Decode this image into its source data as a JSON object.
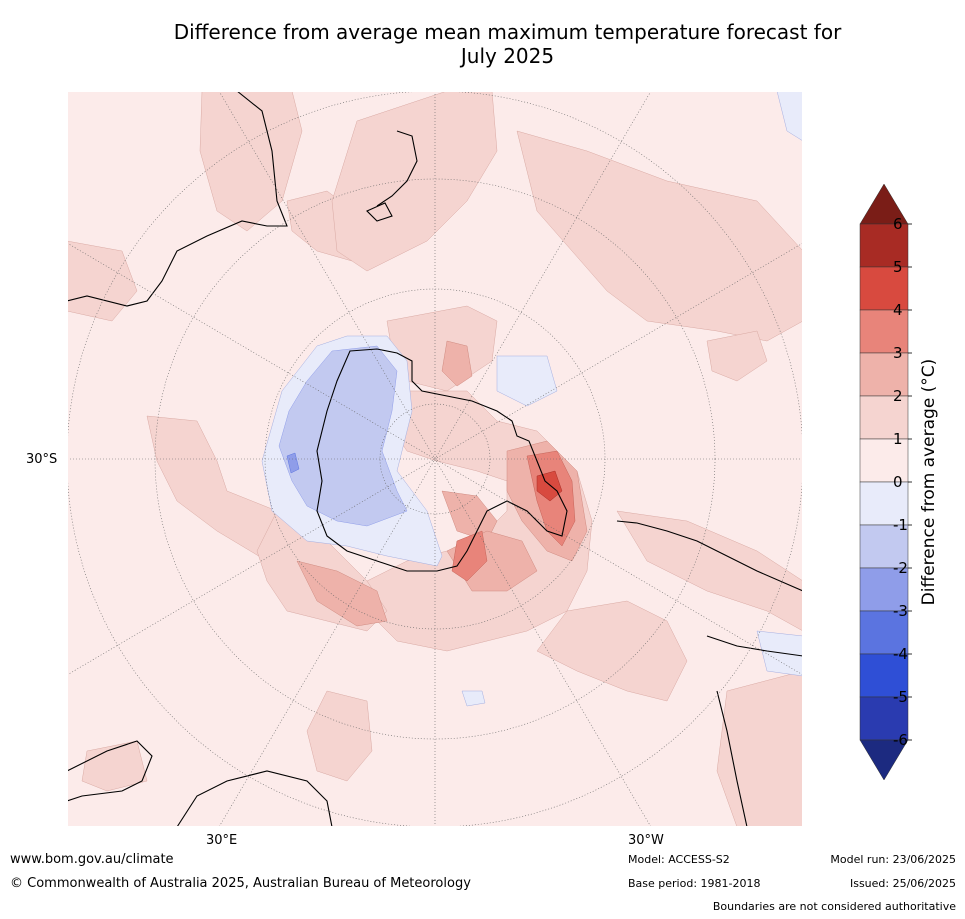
{
  "title": {
    "line1": "Difference from average mean maximum temperature forecast for",
    "line2": "July 2025"
  },
  "map": {
    "projection": "south-polar stereographic",
    "lat_label": "30°S",
    "lon_labels": [
      "30°E",
      "30°W"
    ],
    "ocean_color": "#fcebea"
  },
  "colorbar": {
    "label": "Difference from average (°C)",
    "ticks": [
      "6",
      "5",
      "4",
      "3",
      "2",
      "1",
      "0",
      "-1",
      "-2",
      "-3",
      "-4",
      "-5",
      "-6"
    ],
    "colors": {
      "above_max": "#7a1d17",
      "5_to_6": "#a82b24",
      "4_to_5": "#d84a3f",
      "3_to_4": "#e8847a",
      "2_to_3": "#eeb2aa",
      "1_to_2": "#f5d4d0",
      "0_to_1": "#fcebea",
      "m1_to_0": "#e8ebfa",
      "m2_to_m1": "#c2c9f0",
      "m3_to_m2": "#8f9de9",
      "m4_to_m3": "#5b74e0",
      "m5_to_m4": "#2f4fd6",
      "m6_to_m5": "#2a3bb0",
      "below_min": "#1c2a80"
    }
  },
  "footer": {
    "website": "www.bom.gov.au/climate",
    "copyright": "© Commonwealth of Australia 2025, Australian Bureau of Meteorology",
    "model": "Model: ACCESS-S2",
    "base_period": "Base period: 1981-2018",
    "model_run": "Model run: 23/06/2025",
    "issued": "Issued: 25/06/2025",
    "disclaimer": "Boundaries are not considered authoritative"
  }
}
